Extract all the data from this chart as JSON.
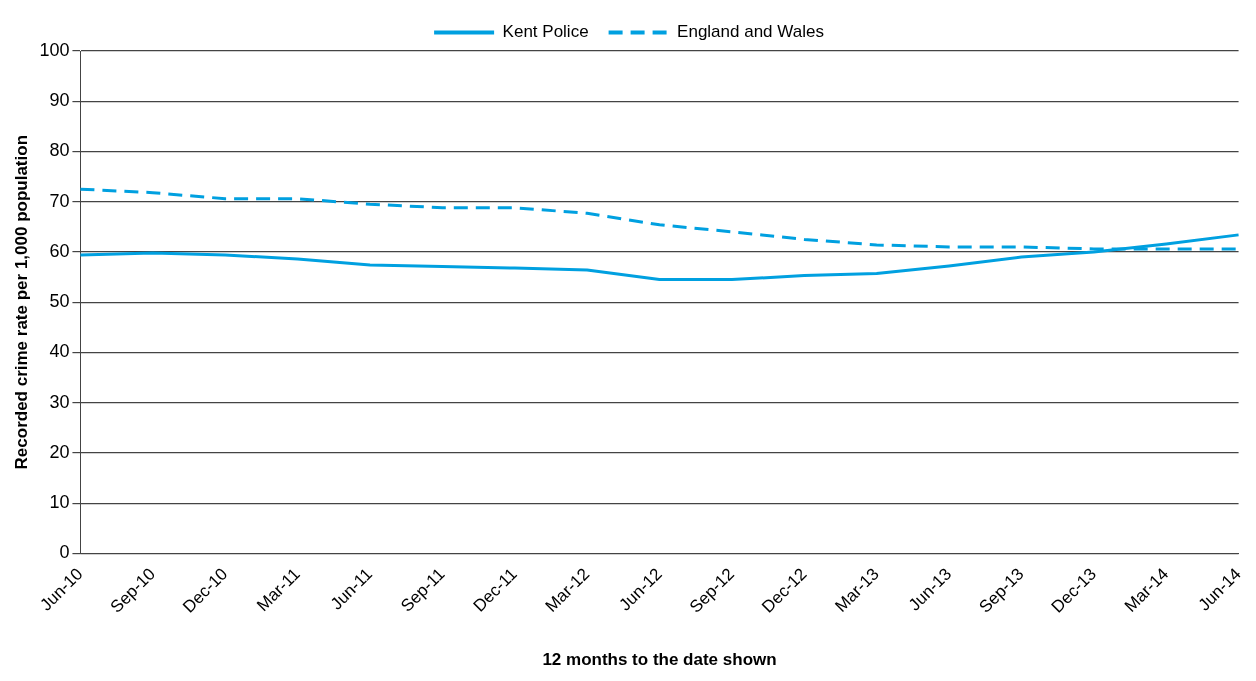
{
  "chart_data": {
    "type": "line",
    "xlabel": "12 months to the date shown",
    "ylabel": "Recorded crime rate per 1,000 population",
    "categories": [
      "Jun-10",
      "Sep-10",
      "Dec-10",
      "Mar-11",
      "Jun-11",
      "Sep-11",
      "Dec-11",
      "Mar-12",
      "Jun-12",
      "Sep-12",
      "Dec-12",
      "Mar-13",
      "Jun-13",
      "Sep-13",
      "Dec-13",
      "Mar-14",
      "Jun-14"
    ],
    "series": [
      {
        "name": "Kent Police",
        "color": "#00a0e0",
        "line_style": "solid",
        "values": [
          59.4,
          59.8,
          59.4,
          58.6,
          57.4,
          57.1,
          56.8,
          56.4,
          54.5,
          54.5,
          55.3,
          55.7,
          57.2,
          59.0,
          60.0,
          61.6,
          63.4
        ]
      },
      {
        "name": "England and Wales",
        "color": "#00a0e0",
        "line_style": "dashed",
        "values": [
          72.5,
          71.8,
          70.6,
          70.6,
          69.5,
          68.8,
          68.8,
          67.7,
          65.4,
          64.0,
          62.5,
          61.4,
          61.0,
          61.0,
          60.6,
          60.6,
          60.6
        ]
      }
    ],
    "ylim": [
      0,
      100
    ],
    "yticks": [
      0,
      10,
      20,
      30,
      40,
      50,
      60,
      70,
      80,
      90,
      100
    ],
    "grid": "y",
    "legend": "top",
    "marker": "none"
  }
}
